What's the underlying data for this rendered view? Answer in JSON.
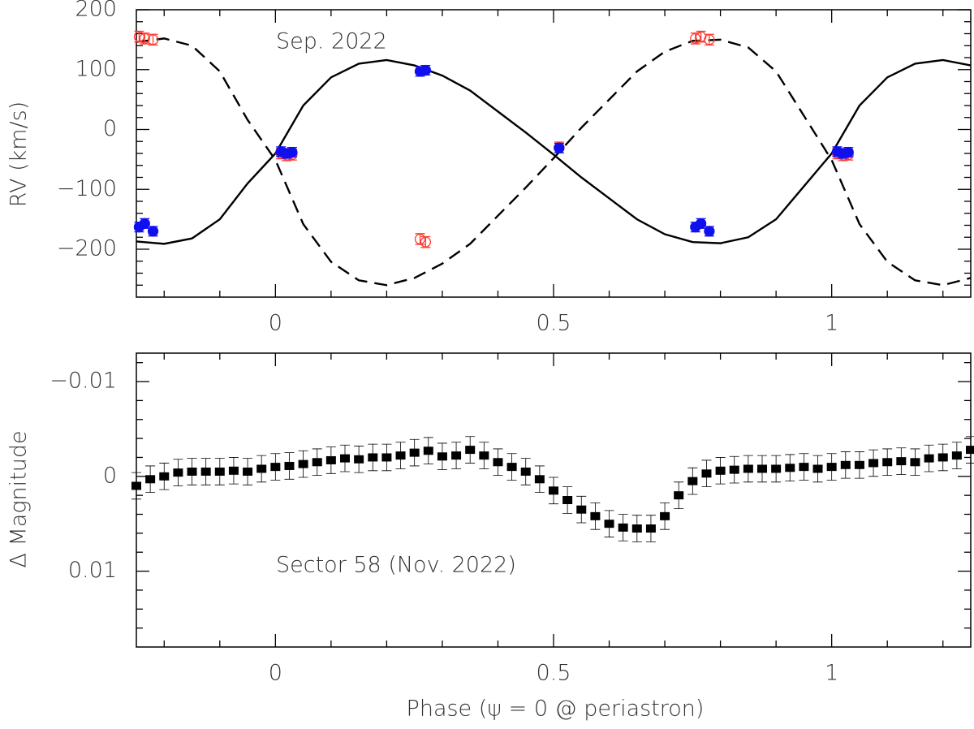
{
  "chart_data": [
    {
      "type": "scatter",
      "ylabel": "RV (km/s)",
      "annotation": "Sep. 2022",
      "xlim": [
        -0.25,
        1.25
      ],
      "xticks": [
        0,
        0.5,
        1
      ],
      "x_minor_ticks": [
        -0.2,
        -0.1,
        0.1,
        0.2,
        0.3,
        0.4,
        0.6,
        0.7,
        0.8,
        0.9,
        1.1,
        1.2
      ],
      "ylim": [
        -280,
        200
      ],
      "yticks": [
        {
          "value": -200,
          "label": "−200"
        },
        {
          "value": -100,
          "label": "−100"
        },
        0,
        100,
        200
      ],
      "y_minor_ticks": [
        -260,
        -240,
        -220,
        -180,
        -160,
        -140,
        -120,
        -80,
        -60,
        -40,
        -20,
        20,
        40,
        60,
        80,
        120,
        140,
        160,
        180
      ],
      "curves": [
        {
          "color": "#000000",
          "dashed": false,
          "x": [
            -0.25,
            -0.2,
            -0.15,
            -0.1,
            -0.05,
            0,
            0.05,
            0.1,
            0.15,
            0.2,
            0.25,
            0.3,
            0.35,
            0.4,
            0.45,
            0.5,
            0.55,
            0.6,
            0.65,
            0.7,
            0.75,
            0.8,
            0.85,
            0.9,
            0.95,
            1,
            1.05,
            1.1,
            1.15,
            1.2,
            1.25
          ],
          "values": [
            -187,
            -191,
            -182,
            -150,
            -90,
            -40,
            40,
            87,
            110,
            116,
            107,
            90,
            65,
            30,
            -5,
            -42,
            -80,
            -115,
            -150,
            -175,
            -188,
            -190,
            -180,
            -150,
            -95,
            -40,
            40,
            87,
            110,
            116,
            107
          ]
        },
        {
          "color": "#000000",
          "dashed": true,
          "x": [
            -0.25,
            -0.2,
            -0.15,
            -0.1,
            -0.05,
            0,
            0.05,
            0.1,
            0.15,
            0.2,
            0.25,
            0.3,
            0.35,
            0.4,
            0.45,
            0.5,
            0.55,
            0.6,
            0.65,
            0.7,
            0.75,
            0.8,
            0.85,
            0.9,
            0.95,
            1,
            1.05,
            1.1,
            1.15,
            1.2,
            1.25
          ],
          "values": [
            146,
            152,
            140,
            97,
            16,
            -51,
            -158,
            -221,
            -252,
            -260,
            -248,
            -224,
            -191,
            -144,
            -97,
            -48,
            3,
            50,
            97,
            130,
            148,
            150,
            137,
            97,
            23,
            -51,
            -158,
            -221,
            -252,
            -260,
            -248
          ]
        }
      ],
      "series": [
        {
          "color": "#ff3b30",
          "marker": "open",
          "x": [
            -0.245,
            -0.235,
            -0.22,
            0.01,
            0.02,
            0.03,
            0.26,
            0.27,
            0.51,
            0.755,
            0.765,
            0.78,
            1.01,
            1.02,
            1.03
          ],
          "values": [
            155,
            152,
            150,
            -40,
            -43,
            -42,
            -183,
            -188,
            -30,
            152,
            155,
            150,
            -40,
            -43,
            -42
          ],
          "errors": [
            9,
            9,
            9,
            9,
            9,
            9,
            9,
            9,
            9,
            9,
            9,
            9,
            9,
            9,
            9
          ]
        },
        {
          "color": "#1010ee",
          "marker": "filled",
          "x": [
            -0.245,
            -0.235,
            -0.22,
            0.01,
            0.02,
            0.03,
            0.26,
            0.27,
            0.51,
            0.755,
            0.765,
            0.78,
            1.01,
            1.02,
            1.03
          ],
          "values": [
            -163,
            -157,
            -170,
            -37,
            -40,
            -38,
            97,
            99,
            -31,
            -163,
            -157,
            -170,
            -37,
            -40,
            -38
          ],
          "errors": [
            8,
            8,
            8,
            8,
            8,
            8,
            8,
            8,
            8,
            8,
            8,
            8,
            8,
            8,
            8
          ]
        }
      ]
    },
    {
      "type": "errorbar",
      "ylabel": "Δ Magnitude",
      "xlabel": "Phase (ψ = 0 @ periastron)",
      "annotation": "Sector 58 (Nov. 2022)",
      "xlim": [
        -0.25,
        1.25
      ],
      "xticks": [
        0,
        0.5,
        1
      ],
      "x_minor_ticks": [
        -0.2,
        -0.1,
        0.1,
        0.2,
        0.3,
        0.4,
        0.6,
        0.7,
        0.8,
        0.9,
        1.1,
        1.2
      ],
      "ylim": [
        -0.013,
        0.018
      ],
      "y_inverted": true,
      "yticks": [
        {
          "value": -0.01,
          "label": "−0.01"
        },
        0,
        0.01
      ],
      "y_minor_ticks": [
        -0.012,
        -0.008,
        -0.006,
        -0.004,
        -0.002,
        0.002,
        0.004,
        0.006,
        0.008,
        0.012,
        0.014,
        0.016
      ],
      "color": "#000000",
      "x": [
        -0.25,
        -0.225,
        -0.2,
        -0.175,
        -0.15,
        -0.125,
        -0.1,
        -0.075,
        -0.05,
        -0.025,
        0,
        0.025,
        0.05,
        0.075,
        0.1,
        0.125,
        0.15,
        0.175,
        0.2,
        0.225,
        0.25,
        0.275,
        0.3,
        0.325,
        0.35,
        0.375,
        0.4,
        0.425,
        0.45,
        0.475,
        0.5,
        0.525,
        0.55,
        0.575,
        0.6,
        0.625,
        0.65,
        0.675,
        0.7,
        0.725,
        0.75,
        0.775,
        0.8,
        0.825,
        0.85,
        0.875,
        0.9,
        0.925,
        0.95,
        0.975,
        1,
        1.025,
        1.05,
        1.075,
        1.1,
        1.125,
        1.15,
        1.175,
        1.2,
        1.225,
        1.25
      ],
      "values": [
        0.001,
        0.0003,
        0,
        -0.0004,
        -0.0005,
        -0.0005,
        -0.0005,
        -0.0006,
        -0.0005,
        -0.0008,
        -0.001,
        -0.0011,
        -0.0013,
        -0.0015,
        -0.0017,
        -0.0019,
        -0.0018,
        -0.002,
        -0.002,
        -0.0022,
        -0.0025,
        -0.0027,
        -0.0021,
        -0.0022,
        -0.0028,
        -0.0022,
        -0.0015,
        -0.001,
        -0.0005,
        0.0003,
        0.0015,
        0.0025,
        0.0035,
        0.0042,
        0.005,
        0.0054,
        0.0055,
        0.0055,
        0.0042,
        0.002,
        0.0005,
        -0.0003,
        -0.0006,
        -0.0007,
        -0.0008,
        -0.0008,
        -0.0008,
        -0.0009,
        -0.001,
        -0.0008,
        -0.001,
        -0.0012,
        -0.0012,
        -0.0014,
        -0.0015,
        -0.0016,
        -0.0015,
        -0.0019,
        -0.002,
        -0.0022,
        -0.0028
      ],
      "errors": [
        0.0014,
        0.0014,
        0.0014,
        0.0014,
        0.0014,
        0.0014,
        0.0014,
        0.0014,
        0.0014,
        0.0014,
        0.0014,
        0.0014,
        0.0014,
        0.0014,
        0.0014,
        0.0014,
        0.0014,
        0.0014,
        0.0014,
        0.0014,
        0.0014,
        0.0014,
        0.0014,
        0.0014,
        0.0014,
        0.0014,
        0.0014,
        0.0014,
        0.0014,
        0.0014,
        0.0014,
        0.0014,
        0.0014,
        0.0014,
        0.0014,
        0.0014,
        0.0014,
        0.0014,
        0.0014,
        0.0014,
        0.0014,
        0.0014,
        0.0014,
        0.0014,
        0.0014,
        0.0014,
        0.0014,
        0.0014,
        0.0014,
        0.0014,
        0.0014,
        0.0014,
        0.0014,
        0.0014,
        0.0014,
        0.0014,
        0.0014,
        0.0014,
        0.0014,
        0.0014,
        0.0014
      ]
    }
  ]
}
